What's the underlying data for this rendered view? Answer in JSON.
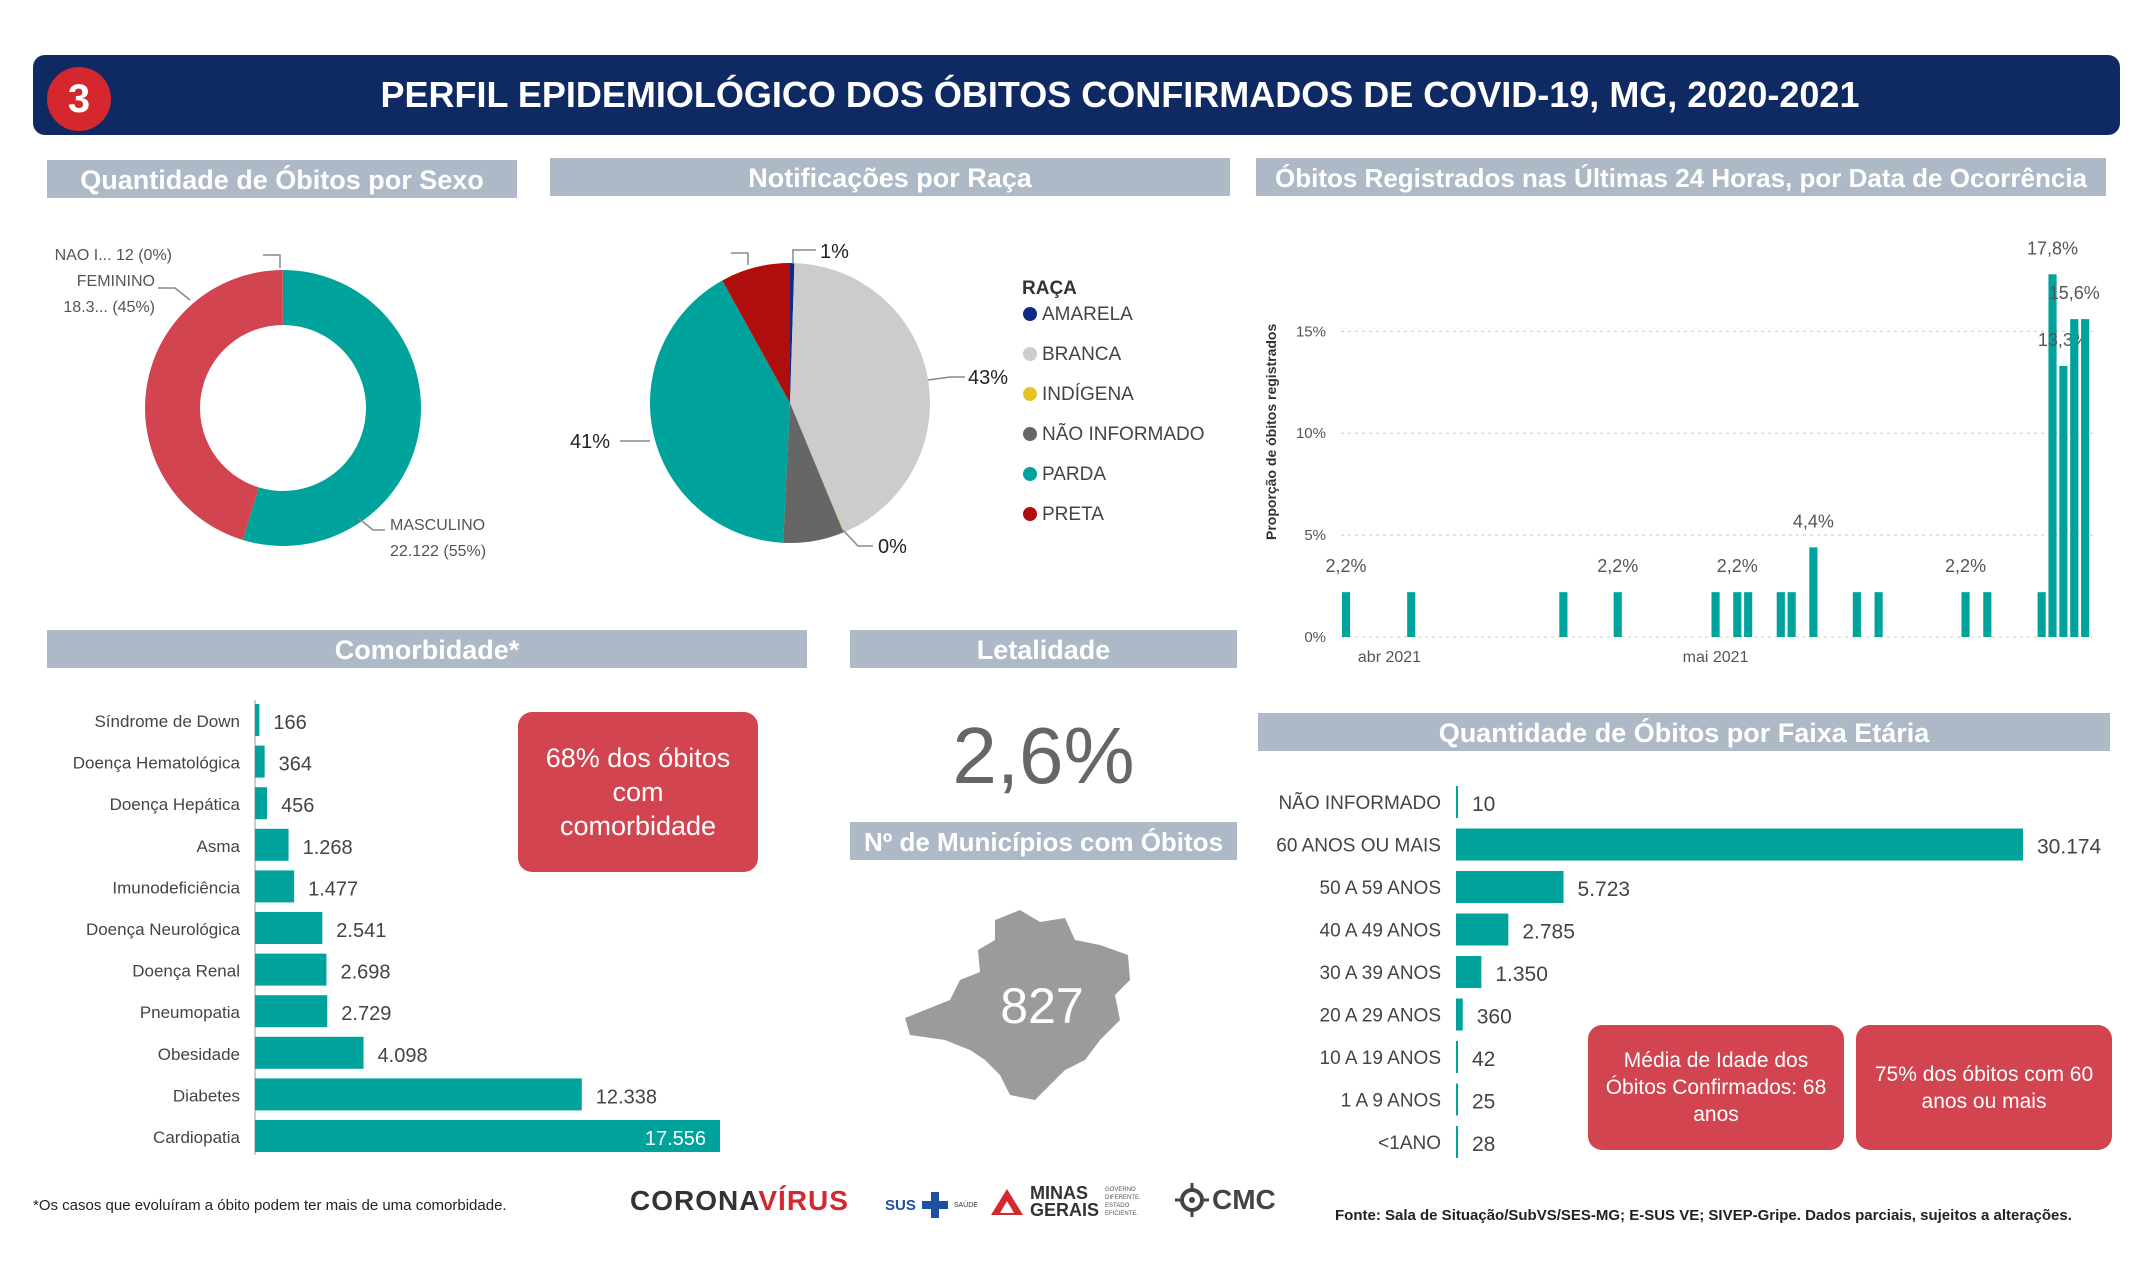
{
  "header": {
    "badge": "3",
    "title": "PERFIL EPIDEMIOLÓGICO DOS ÓBITOS CONFIRMADOS DE COVID-19, MG, 2020-2021"
  },
  "colors": {
    "teal": "#00a39b",
    "red": "#d24450",
    "navy": "#0f2a63",
    "grey_panel": "#aeb9c8"
  },
  "sexo": {
    "title": "Quantidade de Óbitos por Sexo",
    "chart_data": {
      "type": "pie",
      "slices": [
        {
          "label": "MASCULINO",
          "value": 22122,
          "display": "22.122 (55%)",
          "color": "#00a39b"
        },
        {
          "label": "FEMININO",
          "value": 18300,
          "display": "18.3... (45%)",
          "color": "#d24450"
        },
        {
          "label": "NAO I...",
          "value": 12,
          "display": "12 (0%)",
          "color": "#888888"
        }
      ]
    }
  },
  "raca": {
    "title": "Notificações por Raça",
    "legend_title": "RAÇA",
    "chart_data": {
      "type": "pie",
      "slices": [
        {
          "label": "AMARELA",
          "value": 0.5,
          "color": "#0f2a82"
        },
        {
          "label": "BRANCA",
          "value": 43,
          "display": "43%",
          "color": "#cccccc"
        },
        {
          "label": "INDÍGENA",
          "value": 0.05,
          "display": "0%",
          "color": "#e6c229"
        },
        {
          "label": "NÃO INFORMADO",
          "value": 7,
          "color": "#666666"
        },
        {
          "label": "PARDA",
          "value": 41,
          "display": "41%",
          "color": "#00a39b"
        },
        {
          "label": "PRETA",
          "value": 8,
          "display": "8%",
          "color": "#b00d0d"
        }
      ],
      "extra_labels": [
        "1%"
      ]
    }
  },
  "ultimas24h": {
    "title": "Óbitos Registrados nas Últimas 24 Horas, por Data de Ocorrência",
    "ylabel": "Proporção de óbitos registrados",
    "chart_data": {
      "type": "bar",
      "y_ticks": [
        "0%",
        "5%",
        "10%",
        "15%"
      ],
      "ylim": [
        0,
        18.5
      ],
      "x_ticks": [
        {
          "label": "abr 2021",
          "date": "2021-04-01"
        },
        {
          "label": "mai 2021",
          "date": "2021-05-01"
        }
      ],
      "x_range": [
        "2021-03-28",
        "2021-06-04"
      ],
      "bars": [
        {
          "date": "2021-03-28",
          "value": 2.2,
          "label": "2,2%"
        },
        {
          "date": "2021-04-03",
          "value": 2.2
        },
        {
          "date": "2021-04-17",
          "value": 2.2
        },
        {
          "date": "2021-04-22",
          "value": 2.2,
          "label": "2,2%"
        },
        {
          "date": "2021-05-01",
          "value": 2.2
        },
        {
          "date": "2021-05-03",
          "value": 2.2,
          "label": "2,2%"
        },
        {
          "date": "2021-05-04",
          "value": 2.2
        },
        {
          "date": "2021-05-07",
          "value": 2.2
        },
        {
          "date": "2021-05-08",
          "value": 2.2
        },
        {
          "date": "2021-05-10",
          "value": 4.4,
          "label": "4,4%"
        },
        {
          "date": "2021-05-14",
          "value": 2.2
        },
        {
          "date": "2021-05-16",
          "value": 2.2
        },
        {
          "date": "2021-05-24",
          "value": 2.2,
          "label": "2,2%"
        },
        {
          "date": "2021-05-26",
          "value": 2.2
        },
        {
          "date": "2021-05-31",
          "value": 2.2
        },
        {
          "date": "2021-06-01",
          "value": 17.8,
          "label": "17,8%"
        },
        {
          "date": "2021-06-02",
          "value": 13.3,
          "label": "13,3%"
        },
        {
          "date": "2021-06-03",
          "value": 15.6,
          "label": "15,6%"
        },
        {
          "date": "2021-06-04",
          "value": 15.6
        }
      ]
    }
  },
  "comorbidade": {
    "title": "Comorbidade*",
    "box": "68% dos óbitos com comorbidade",
    "chart_data": {
      "type": "bar",
      "orientation": "horizontal",
      "categories": [
        "Síndrome de Down",
        "Doença Hematológica",
        "Doença Hepática",
        "Asma",
        "Imunodeficiência",
        "Doença Neurológica",
        "Doença Renal",
        "Pneumopatia",
        "Obesidade",
        "Diabetes",
        "Cardiopatia"
      ],
      "values": [
        166,
        364,
        456,
        1268,
        1477,
        2541,
        2698,
        2729,
        4098,
        12338,
        17556
      ],
      "labels": [
        "166",
        "364",
        "456",
        "1.268",
        "1.477",
        "2.541",
        "2.698",
        "2.729",
        "4.098",
        "12.338",
        "17.556"
      ]
    }
  },
  "letalidade": {
    "title": "Letalidade",
    "value": "2,6%"
  },
  "municipios": {
    "title": "Nº de Municípios com Óbitos",
    "value": "827"
  },
  "faixa": {
    "title": "Quantidade de Óbitos por Faixa Etária",
    "box1": "Média de Idade dos Óbitos Confirmados: 68 anos",
    "box2": "75% dos óbitos com 60 anos ou mais",
    "chart_data": {
      "type": "bar",
      "orientation": "horizontal",
      "categories": [
        "NÃO INFORMADO",
        "60 ANOS OU MAIS",
        "50 A 59 ANOS",
        "40 A 49 ANOS",
        "30 A 39 ANOS",
        "20 A 29 ANOS",
        "10 A 19 ANOS",
        "1 A 9 ANOS",
        "<1ANO"
      ],
      "values": [
        10,
        30174,
        5723,
        2785,
        1350,
        360,
        42,
        25,
        28
      ],
      "labels": [
        "10",
        "30.174",
        "5.723",
        "2.785",
        "1.350",
        "360",
        "42",
        "25",
        "28"
      ]
    }
  },
  "footer": {
    "note": "*Os casos que evoluíram a óbito podem ter mais de uma comorbidade.",
    "source": "Fonte: Sala de Situação/SubVS/SES-MG; E-SUS VE; SIVEP-Gripe. Dados parciais, sujeitos a alterações.",
    "logo_corona_1": "CORONA",
    "logo_corona_2": "VÍRUS",
    "logo_sus": "SUS",
    "logo_saude": "SAÚDE",
    "logo_mg_1": "MINAS",
    "logo_mg_2": "GERAIS",
    "logo_mg_tag": "GOVERNO DIFERENTE. ESTADO EFICIENTE.",
    "logo_cmc": "CMC"
  }
}
